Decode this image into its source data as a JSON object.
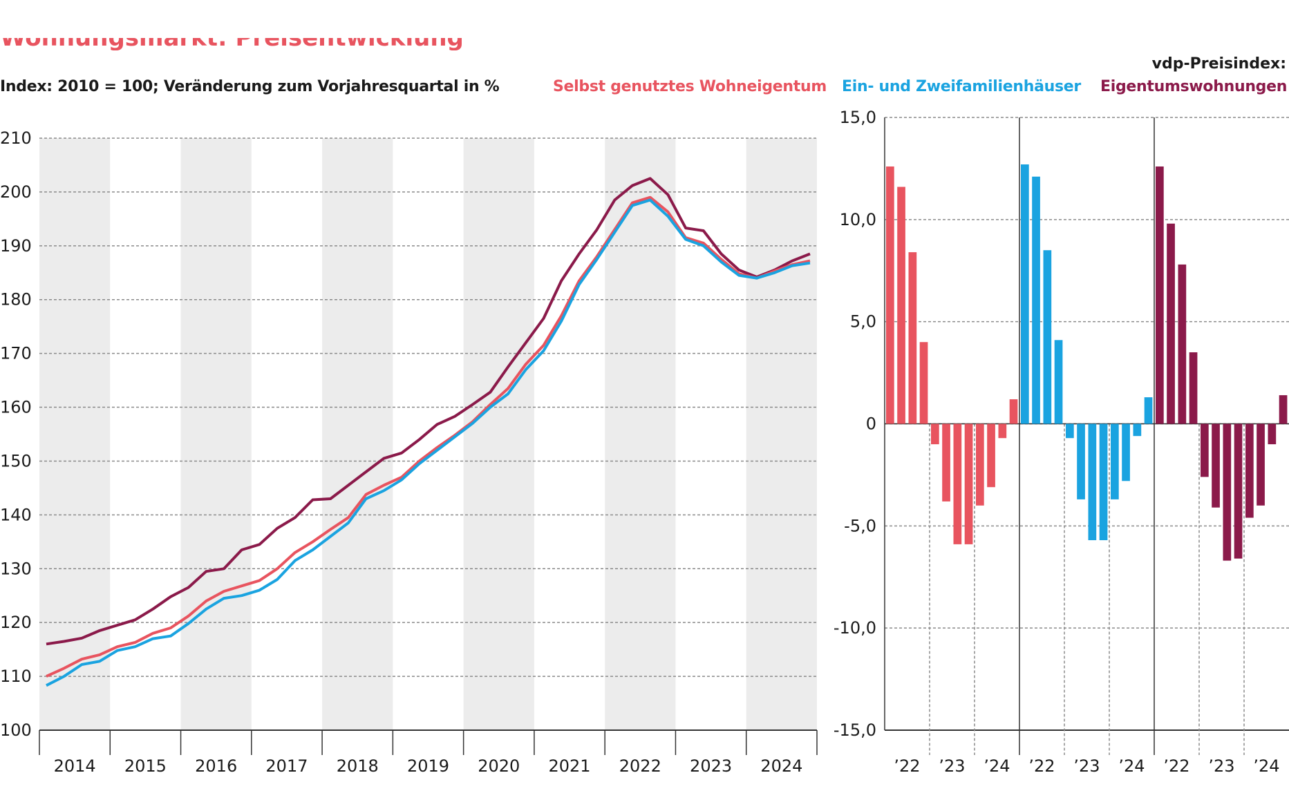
{
  "header": {
    "title": "Wohnungsmarkt: Preisentwicklung",
    "subtitle": "Index: 2010 = 100; Veränderung zum Vorjahresquartal in %",
    "index_name": "vdp-Preisindex:"
  },
  "colors": {
    "selbst": "#e8545f",
    "einzwei": "#1aa3e0",
    "eigentum": "#8b1a4a",
    "band": "#ececec",
    "grid": "#8a8a8a",
    "axis": "#333333"
  },
  "chart_data": [
    {
      "type": "line",
      "title": "Index: 2010 = 100",
      "x_labels": [
        "2014",
        "2015",
        "2016",
        "2017",
        "2018",
        "2019",
        "2020",
        "2021",
        "2022",
        "2023",
        "2024"
      ],
      "ylim": [
        100,
        210
      ],
      "yticks": [
        100,
        110,
        120,
        130,
        140,
        150,
        160,
        170,
        180,
        190,
        200,
        210
      ],
      "grid": true,
      "series": [
        {
          "name": "Eigentumswohnungen",
          "color_key": "eigentum",
          "values": [
            116.0,
            116.5,
            117.1,
            118.5,
            119.5,
            120.5,
            122.5,
            124.8,
            126.5,
            129.5,
            130.0,
            133.5,
            134.5,
            137.5,
            139.5,
            142.8,
            143.0,
            145.5,
            148.0,
            150.5,
            151.5,
            154.0,
            156.8,
            158.3,
            160.5,
            162.8,
            167.5,
            172.0,
            176.5,
            183.5,
            188.5,
            193.0,
            198.5,
            201.2,
            202.5,
            199.5,
            193.3,
            192.8,
            188.5,
            185.5,
            184.2,
            185.5,
            187.2,
            188.5
          ]
        },
        {
          "name": "Selbst genutztes Wohneigentum",
          "color_key": "selbst",
          "values": [
            110.0,
            111.5,
            113.2,
            114.0,
            115.5,
            116.3,
            118.0,
            119.0,
            121.2,
            124.0,
            125.8,
            126.8,
            127.8,
            130.0,
            133.0,
            135.0,
            137.3,
            139.5,
            143.8,
            145.5,
            147.0,
            150.0,
            152.5,
            154.8,
            157.3,
            160.5,
            163.5,
            168.0,
            171.5,
            177.0,
            183.5,
            188.0,
            193.0,
            198.0,
            199.0,
            196.3,
            191.5,
            190.5,
            187.5,
            184.8,
            184.0,
            185.3,
            186.5,
            187.2
          ]
        },
        {
          "name": "Ein- und Zweifamilienhäuser",
          "color_key": "einzwei",
          "values": [
            108.3,
            110.0,
            112.2,
            112.8,
            114.8,
            115.5,
            117.0,
            117.5,
            119.8,
            122.5,
            124.5,
            125.0,
            126.0,
            128.0,
            131.5,
            133.5,
            136.0,
            138.5,
            143.0,
            144.5,
            146.5,
            149.5,
            152.0,
            154.5,
            157.0,
            160.0,
            162.5,
            167.0,
            170.5,
            176.0,
            182.8,
            187.5,
            192.5,
            197.5,
            198.5,
            195.5,
            191.2,
            190.0,
            187.0,
            184.5,
            184.0,
            185.0,
            186.3,
            186.8
          ]
        }
      ]
    },
    {
      "type": "bar",
      "title": "Veränderung zum Vorjahresquartal in %",
      "ylim": [
        -15,
        15
      ],
      "yticks": [
        -15,
        -10,
        -5,
        0,
        5,
        10,
        15
      ],
      "ytick_labels": [
        "-15,0",
        "-10,0",
        "-5,0",
        "0",
        "5,0",
        "10,0",
        "15,0"
      ],
      "group_labels": [
        "’22",
        "’23",
        "’24"
      ],
      "series": [
        {
          "name": "Selbst genutztes Wohneigentum",
          "color_key": "selbst",
          "values": [
            12.6,
            11.6,
            8.4,
            4.0,
            -1.0,
            -3.8,
            -5.9,
            -5.9,
            -4.0,
            -3.1,
            -0.7,
            1.2
          ]
        },
        {
          "name": "Ein- und Zweifamilienhäuser",
          "color_key": "einzwei",
          "values": [
            12.7,
            12.1,
            8.5,
            4.1,
            -0.7,
            -3.7,
            -5.7,
            -5.7,
            -3.7,
            -2.8,
            -0.6,
            1.3
          ]
        },
        {
          "name": "Eigentumswohnungen",
          "color_key": "eigentum",
          "values": [
            12.6,
            9.8,
            7.8,
            3.5,
            -2.6,
            -4.1,
            -6.7,
            -6.6,
            -4.6,
            -4.0,
            -1.0,
            1.4
          ]
        }
      ]
    }
  ]
}
